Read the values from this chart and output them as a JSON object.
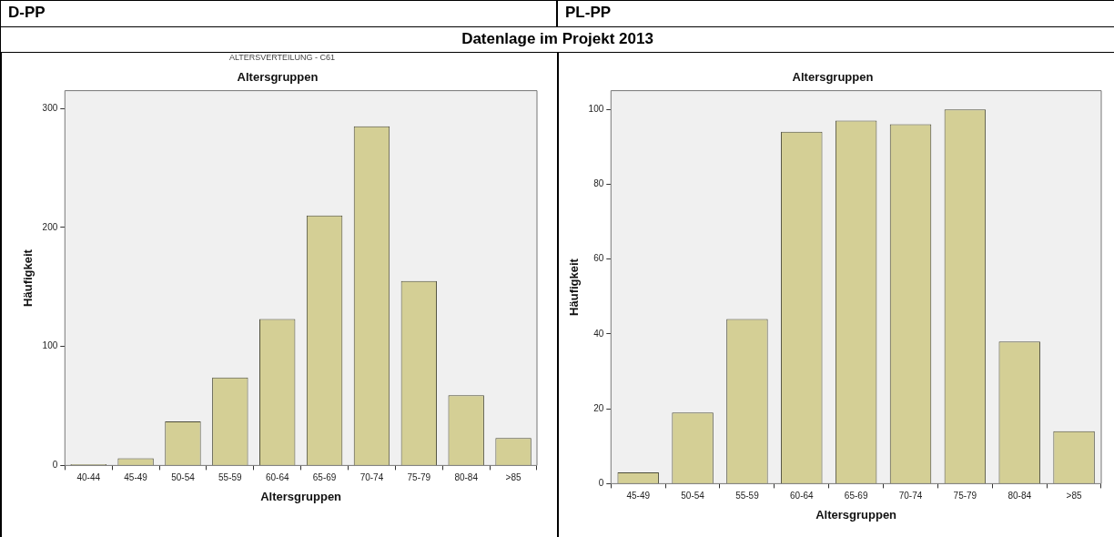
{
  "chart_data": [
    {
      "type": "bar",
      "annotations": [
        "D-PP",
        "Datenlage im Projekt 2013"
      ],
      "subtitle": "ALTERSVERTEILUNG - C61",
      "title": "Altersgruppen",
      "xlabel": "Altersgruppen",
      "ylabel": "Häufigkeit",
      "categories": [
        "40-44",
        "45-49",
        "50-54",
        "55-59",
        "60-64",
        "65-69",
        "70-74",
        "75-79",
        "80-84",
        ">85"
      ],
      "values": [
        1,
        6,
        37,
        74,
        123,
        210,
        285,
        155,
        59,
        23
      ],
      "color": "#d4cf95",
      "ylim": [
        0,
        315
      ],
      "yticks": [
        0,
        100,
        200,
        300
      ]
    },
    {
      "type": "bar",
      "annotations": [
        "PL-PP"
      ],
      "title": "Altersgruppen",
      "xlabel": "Altersgruppen",
      "ylabel": "Häufigkeit",
      "categories": [
        "45-49",
        "50-54",
        "55-59",
        "60-64",
        "65-69",
        "70-74",
        "75-79",
        "80-84",
        ">85"
      ],
      "values": [
        3,
        19,
        44,
        94,
        97,
        96,
        100,
        38,
        14
      ],
      "color": "#d4cf95",
      "ylim": [
        0,
        105
      ],
      "yticks": [
        0,
        20,
        40,
        60,
        80,
        100
      ]
    }
  ]
}
